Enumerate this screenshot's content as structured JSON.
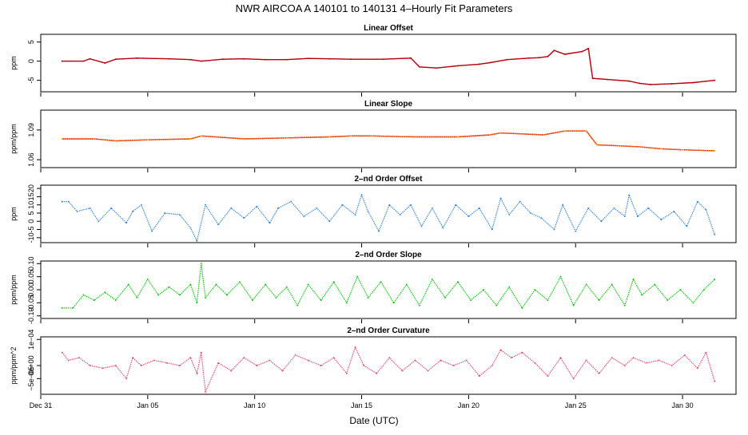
{
  "title": "NWR   AIRCOA A   140101 to 140131   4–Hourly Fit Parameters",
  "xlabel": "Date (UTC)",
  "chart_data": [
    {
      "type": "line",
      "title": "Linear Offset",
      "ylabel": "ppm",
      "color": "#8b0000",
      "overlay_color": "#e0001a",
      "yticks": [
        {
          "v": 5,
          "t": "5"
        },
        {
          "v": 0,
          "t": "0"
        },
        {
          "v": -5,
          "t": "-5"
        }
      ],
      "ylim": [
        -8,
        7
      ],
      "x": [
        1.5,
        2.5,
        2.8,
        3.5,
        4.0,
        5.0,
        6.5,
        7.5,
        8.0,
        9.0,
        10.0,
        11.0,
        12.0,
        13.0,
        14.0,
        15.0,
        16.5,
        17.8,
        18.2,
        19.0,
        20.0,
        21.0,
        21.5,
        22.3,
        23.3,
        23.8,
        24.2,
        24.5,
        25.0,
        25.8,
        26.1,
        26.3,
        27.0,
        28.0,
        28.5,
        29.0,
        30.0,
        31.0,
        32.0
      ],
      "values": [
        0,
        0,
        0.6,
        -0.5,
        0.5,
        0.8,
        0.6,
        0.4,
        0,
        0.5,
        0.6,
        0.4,
        0.4,
        0.7,
        0.6,
        0.5,
        0.5,
        0.8,
        -1.5,
        -1.8,
        -1.2,
        -0.8,
        -0.4,
        0.4,
        0.8,
        0.9,
        1.2,
        2.8,
        1.8,
        2.5,
        3.3,
        -4.5,
        -4.8,
        -5.2,
        -5.8,
        -6.1,
        -5.9,
        -5.6,
        -5.0
      ]
    },
    {
      "type": "line",
      "title": "Linear Slope",
      "ylabel": "ppm/ppm",
      "color": "#ffa500",
      "overlay_color": "#e0001a",
      "yticks": [
        {
          "v": 1.09,
          "t": "1.09"
        },
        {
          "v": 1.06,
          "t": "1.06"
        }
      ],
      "ylim": [
        1.052,
        1.11
      ],
      "x": [
        1.5,
        3.0,
        4.0,
        5.5,
        7.5,
        8.0,
        10.0,
        12.0,
        14.0,
        15.0,
        16.0,
        18.0,
        20.0,
        21.5,
        22.0,
        24.0,
        25.0,
        26.0,
        26.5,
        27.5,
        28.5,
        29.5,
        30.5,
        32.0
      ],
      "values": [
        1.081,
        1.081,
        1.079,
        1.08,
        1.081,
        1.084,
        1.081,
        1.082,
        1.083,
        1.084,
        1.084,
        1.083,
        1.083,
        1.085,
        1.087,
        1.085,
        1.089,
        1.089,
        1.075,
        1.074,
        1.073,
        1.071,
        1.07,
        1.069
      ]
    },
    {
      "type": "line",
      "title": "2–nd Order Offset",
      "ylabel": "ppm",
      "color": "#2a7fd4",
      "yticks": [
        {
          "v": 20,
          "t": "20"
        },
        {
          "v": 15,
          "t": "15"
        },
        {
          "v": 10,
          "t": "10"
        },
        {
          "v": 5,
          "t": "5"
        },
        {
          "v": 0,
          "t": "0"
        },
        {
          "v": -5,
          "t": "-5"
        },
        {
          "v": -10,
          "t": "-10"
        }
      ],
      "ylim": [
        -13,
        22
      ],
      "x": [
        1.5,
        1.8,
        2.2,
        2.8,
        3.2,
        3.8,
        4.5,
        4.8,
        5.2,
        5.7,
        6.3,
        7.0,
        7.5,
        7.8,
        8.2,
        8.8,
        9.4,
        10.0,
        10.6,
        11.2,
        11.6,
        12.2,
        12.8,
        13.4,
        14.0,
        14.6,
        15.2,
        15.5,
        15.8,
        16.3,
        16.8,
        17.3,
        17.8,
        18.3,
        18.8,
        19.3,
        19.9,
        20.5,
        21.0,
        21.6,
        22.0,
        22.4,
        22.9,
        23.4,
        23.9,
        24.5,
        24.9,
        25.5,
        26.1,
        26.7,
        27.3,
        27.8,
        28.0,
        28.4,
        28.9,
        29.5,
        30.1,
        30.7,
        31.2,
        31.6,
        32.0
      ],
      "values": [
        12,
        12,
        6,
        8,
        0,
        8,
        -1,
        6,
        10,
        -6,
        5,
        4,
        -4,
        -12,
        10,
        -2,
        8,
        2,
        9,
        -1,
        8,
        12,
        3,
        8,
        0,
        10,
        4,
        16,
        6,
        -6,
        10,
        4,
        10,
        -3,
        8,
        -4,
        10,
        3,
        8,
        -5,
        14,
        4,
        12,
        5,
        2,
        -5,
        10,
        -6,
        8,
        0,
        8,
        3,
        16,
        3,
        8,
        1,
        6,
        -3,
        12,
        7,
        -8
      ]
    },
    {
      "type": "line",
      "title": "2–nd Order Slope",
      "ylabel": "ppm/ppm",
      "color": "#00c000",
      "yticks": [
        {
          "v": 0.1,
          "t": "0.10"
        },
        {
          "v": 0.05,
          "t": "0.05"
        },
        {
          "v": 0.0,
          "t": "0.00"
        },
        {
          "v": -0.05,
          "t": "-0.05"
        },
        {
          "v": -0.1,
          "t": "-0.10"
        }
      ],
      "ylim": [
        -0.11,
        0.11
      ],
      "x": [
        1.5,
        2.0,
        2.5,
        3.0,
        3.5,
        4.0,
        4.6,
        5.0,
        5.5,
        6.0,
        6.5,
        7.0,
        7.5,
        7.8,
        8.0,
        8.2,
        8.7,
        9.2,
        9.8,
        10.4,
        11.0,
        11.5,
        12.0,
        12.5,
        13.0,
        13.6,
        14.2,
        14.8,
        15.3,
        15.8,
        16.4,
        17.0,
        17.6,
        18.2,
        18.8,
        19.4,
        20.0,
        20.6,
        21.2,
        21.8,
        22.4,
        23.0,
        23.6,
        24.2,
        24.8,
        25.4,
        26.0,
        26.6,
        27.2,
        27.8,
        28.2,
        28.6,
        29.2,
        29.8,
        30.4,
        31.0,
        31.5,
        32.0
      ],
      "values": [
        -0.07,
        -0.07,
        -0.02,
        -0.04,
        -0.01,
        -0.04,
        0.02,
        -0.03,
        0.04,
        -0.02,
        0.01,
        -0.02,
        0.02,
        -0.05,
        0.1,
        -0.03,
        0.02,
        -0.02,
        0.03,
        -0.04,
        0.02,
        -0.03,
        0.01,
        -0.06,
        0.02,
        -0.04,
        0.03,
        -0.05,
        0.05,
        -0.03,
        0.03,
        -0.05,
        0.02,
        -0.06,
        0.04,
        -0.03,
        0.03,
        -0.04,
        0.0,
        -0.06,
        0.01,
        -0.07,
        0.0,
        -0.04,
        0.05,
        -0.06,
        0.02,
        -0.04,
        0.02,
        -0.06,
        0.04,
        -0.02,
        0.02,
        -0.04,
        0.0,
        -0.05,
        0.0,
        0.04
      ]
    },
    {
      "type": "line",
      "title": "2–nd Order Curvature",
      "ylabel": "ppm/ppm^2",
      "color": "#e0406a",
      "yticks": [
        {
          "v": 0.0001,
          "t": "1e−04"
        },
        {
          "v": 0,
          "t": "0e+00"
        },
        {
          "v": -5e-05,
          "t": "−5e−05"
        }
      ],
      "ylim": [
        -0.00011,
        0.00011
      ],
      "x": [
        1.5,
        1.8,
        2.3,
        2.8,
        3.4,
        4.0,
        4.5,
        4.8,
        5.2,
        5.8,
        6.4,
        7.0,
        7.5,
        7.8,
        8.0,
        8.2,
        8.8,
        9.4,
        10.0,
        10.6,
        11.2,
        11.8,
        12.4,
        13.0,
        13.6,
        14.2,
        14.8,
        15.2,
        15.6,
        16.2,
        16.8,
        17.4,
        18.0,
        18.6,
        19.2,
        19.8,
        20.4,
        21.0,
        21.6,
        22.0,
        22.5,
        23.0,
        23.6,
        24.2,
        24.8,
        25.4,
        26.0,
        26.6,
        27.2,
        27.8,
        28.2,
        28.8,
        29.4,
        30.0,
        30.6,
        31.2,
        31.6,
        32.0
      ],
      "values": [
        5e-05,
        2e-05,
        3e-05,
        0.0,
        -1e-05,
        0.0,
        -5e-05,
        3e-05,
        0.0,
        2e-05,
        1e-05,
        0.0,
        3e-05,
        -3e-05,
        5e-05,
        -0.0001,
        1e-05,
        -2e-05,
        3e-05,
        0.0,
        2e-05,
        -2e-05,
        4e-05,
        2e-05,
        0.0,
        3e-05,
        -3e-05,
        7e-05,
        0.0,
        -3e-05,
        3e-05,
        -2e-05,
        2e-05,
        -2e-05,
        2e-05,
        0.0,
        2e-05,
        -4e-05,
        0.0,
        6e-05,
        3e-05,
        5e-05,
        1e-05,
        -4e-05,
        3e-05,
        -5e-05,
        2e-05,
        -3e-05,
        3e-05,
        0.0,
        3e-05,
        1e-05,
        2e-05,
        0.0,
        4e-05,
        -1e-05,
        5e-05,
        -6e-05
      ]
    }
  ],
  "x_axis": {
    "range": [
      0.5,
      33.0
    ],
    "ticks": [
      {
        "v": 0.5,
        "t": "Dec 31"
      },
      {
        "v": 5.5,
        "t": "Jan 05"
      },
      {
        "v": 10.5,
        "t": "Jan 10"
      },
      {
        "v": 15.5,
        "t": "Jan 15"
      },
      {
        "v": 20.5,
        "t": "Jan 20"
      },
      {
        "v": 25.5,
        "t": "Jan 25"
      },
      {
        "v": 30.5,
        "t": "Jan 30"
      }
    ]
  }
}
